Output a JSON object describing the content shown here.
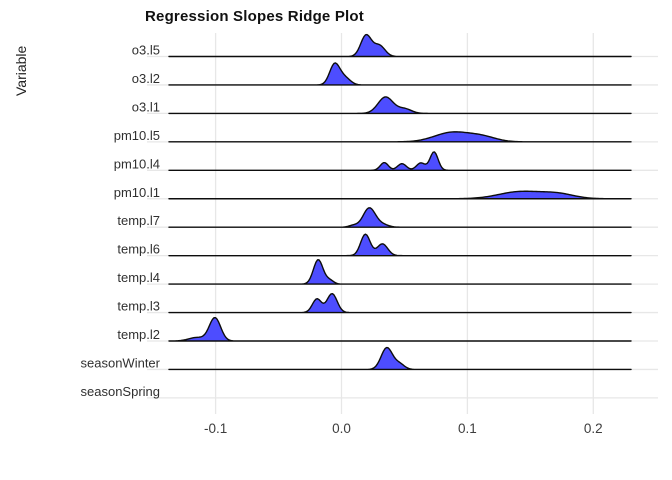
{
  "header": {
    "title": "Regression Slopes Ridge Plot"
  },
  "y_axis": {
    "title": "Variable"
  },
  "chart_data": {
    "type": "ridgeline",
    "title": "Regression Slopes Ridge Plot",
    "xlabel": "",
    "ylabel": "Variable",
    "xlim": [
      -0.155,
      0.251
    ],
    "x_ticks": [
      -0.1,
      0.0,
      0.1,
      0.2
    ],
    "x_tick_labels": [
      "-0.1",
      "0.0",
      "0.1",
      "0.2"
    ],
    "grid": true,
    "legend": "none",
    "style": {
      "fill_color": "#4D4DFF",
      "stroke_color": "#0d0d0d",
      "grid_color": "#e7e7e7",
      "background": "#ffffff"
    },
    "rows": [
      {
        "label": "o3.l5",
        "has_density": true,
        "peak_x": 0.02,
        "peak_height": 22,
        "x_range": [
          0.001,
          0.04
        ],
        "modes": [
          {
            "mu": 0.0195,
            "sigma": 0.0042,
            "w": 1.0
          },
          {
            "mu": 0.03,
            "sigma": 0.0045,
            "w": 0.52
          }
        ]
      },
      {
        "label": "o3.l2",
        "has_density": true,
        "peak_x": -0.004,
        "peak_height": 22,
        "x_range": [
          -0.019,
          0.013
        ],
        "modes": [
          {
            "mu": -0.0055,
            "sigma": 0.004,
            "w": 1.0
          },
          {
            "mu": 0.0025,
            "sigma": 0.0045,
            "w": 0.35
          }
        ]
      },
      {
        "label": "o3.l1",
        "has_density": true,
        "peak_x": 0.036,
        "peak_height": 16.5,
        "x_range": [
          0.015,
          0.065
        ],
        "modes": [
          {
            "mu": 0.035,
            "sigma": 0.006,
            "w": 1.0
          },
          {
            "mu": 0.05,
            "sigma": 0.0055,
            "w": 0.28
          }
        ]
      },
      {
        "label": "pm10.l5",
        "has_density": true,
        "peak_x": 0.09,
        "peak_height": 10,
        "x_range": [
          0.047,
          0.142
        ],
        "modes": [
          {
            "mu": 0.088,
            "sigma": 0.014,
            "w": 1.0
          },
          {
            "mu": 0.112,
            "sigma": 0.011,
            "w": 0.5
          }
        ]
      },
      {
        "label": "pm10.l4",
        "has_density": true,
        "peak_x": 0.073,
        "peak_height": 18.5,
        "x_range": [
          0.023,
          0.09
        ],
        "modes": [
          {
            "mu": 0.034,
            "sigma": 0.0032,
            "w": 0.42
          },
          {
            "mu": 0.048,
            "sigma": 0.0035,
            "w": 0.36
          },
          {
            "mu": 0.063,
            "sigma": 0.0035,
            "w": 0.4
          },
          {
            "mu": 0.0735,
            "sigma": 0.0032,
            "w": 1.0
          }
        ]
      },
      {
        "label": "pm10.l1",
        "has_density": true,
        "peak_x": 0.144,
        "peak_height": 7.5,
        "x_range": [
          0.095,
          0.21
        ],
        "modes": [
          {
            "mu": 0.142,
            "sigma": 0.017,
            "w": 1.0
          },
          {
            "mu": 0.172,
            "sigma": 0.013,
            "w": 0.65
          }
        ]
      },
      {
        "label": "temp.l7",
        "has_density": true,
        "peak_x": 0.022,
        "peak_height": 19.5,
        "x_range": [
          0.004,
          0.046
        ],
        "modes": [
          {
            "mu": 0.022,
            "sigma": 0.0048,
            "w": 1.0
          },
          {
            "mu": 0.0095,
            "sigma": 0.0035,
            "w": 0.1
          },
          {
            "mu": 0.032,
            "sigma": 0.005,
            "w": 0.15
          }
        ]
      },
      {
        "label": "temp.l6",
        "has_density": true,
        "peak_x": 0.019,
        "peak_height": 21.5,
        "x_range": [
          0.009,
          0.046
        ],
        "modes": [
          {
            "mu": 0.019,
            "sigma": 0.0038,
            "w": 1.0
          },
          {
            "mu": 0.0325,
            "sigma": 0.0042,
            "w": 0.55
          }
        ]
      },
      {
        "label": "temp.l4",
        "has_density": true,
        "peak_x": -0.018,
        "peak_height": 24.5,
        "x_range": [
          -0.031,
          -0.003
        ],
        "modes": [
          {
            "mu": -0.0185,
            "sigma": 0.0038,
            "w": 1.0
          },
          {
            "mu": -0.0095,
            "sigma": 0.0032,
            "w": 0.16
          }
        ]
      },
      {
        "label": "temp.l3",
        "has_density": true,
        "peak_x": -0.008,
        "peak_height": 19,
        "x_range": [
          -0.03,
          0.007
        ],
        "modes": [
          {
            "mu": -0.0195,
            "sigma": 0.0036,
            "w": 0.72
          },
          {
            "mu": -0.0075,
            "sigma": 0.004,
            "w": 1.0
          }
        ]
      },
      {
        "label": "temp.l2",
        "has_density": true,
        "peak_x": -0.1,
        "peak_height": 23.5,
        "x_range": [
          -0.136,
          -0.075
        ],
        "modes": [
          {
            "mu": -0.1005,
            "sigma": 0.0045,
            "w": 1.0
          },
          {
            "mu": -0.115,
            "sigma": 0.0065,
            "w": 0.15
          }
        ]
      },
      {
        "label": "seasonWinter",
        "has_density": true,
        "peak_x": 0.037,
        "peak_height": 22,
        "x_range": [
          0.017,
          0.06
        ],
        "modes": [
          {
            "mu": 0.036,
            "sigma": 0.0045,
            "w": 1.0
          },
          {
            "mu": 0.046,
            "sigma": 0.004,
            "w": 0.25
          }
        ]
      },
      {
        "label": "seasonSpring",
        "has_density": false,
        "peak_x": null,
        "peak_height": 0,
        "x_range": null,
        "modes": []
      }
    ]
  }
}
